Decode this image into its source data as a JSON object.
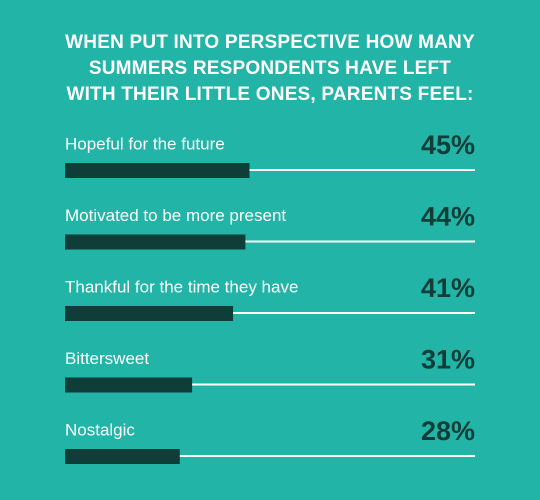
{
  "chart_data": {
    "type": "bar",
    "orientation": "horizontal",
    "title": "WHEN PUT INTO PERSPECTIVE HOW MANY\nSUMMERS RESPONDENTS HAVE LEFT\nWITH THEIR LITTLE ONES, PARENTS FEEL:",
    "categories": [
      "Hopeful for the future",
      "Motivated to be more present",
      "Thankful for the time they have",
      "Bittersweet",
      "Nostalgic"
    ],
    "values": [
      45,
      44,
      41,
      31,
      28
    ],
    "value_labels": [
      "45%",
      "44%",
      "41%",
      "31%",
      "28%"
    ],
    "color": "#0f3d38",
    "xlim": [
      0,
      100
    ]
  }
}
